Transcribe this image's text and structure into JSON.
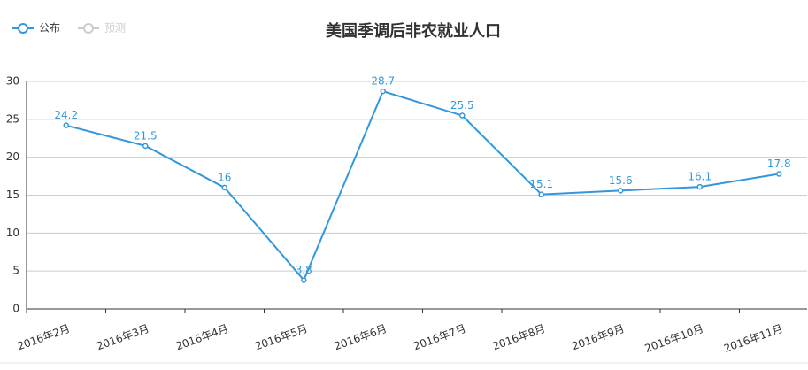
{
  "chart_data": {
    "type": "line",
    "title": "美国季调后非农就业人口",
    "categories": [
      "2016年2月",
      "2016年3月",
      "2016年4月",
      "2016年5月",
      "2016年6月",
      "2016年7月",
      "2016年8月",
      "2016年9月",
      "2016年10月",
      "2016年11月"
    ],
    "series": [
      {
        "name": "公布",
        "color": "#3398db",
        "values": [
          24.2,
          21.5,
          16,
          3.8,
          28.7,
          25.5,
          15.1,
          15.6,
          16.1,
          17.8
        ]
      },
      {
        "name": "预测",
        "color": "#cccccc",
        "values": [
          null,
          null,
          null,
          null,
          null,
          null,
          null,
          null,
          null,
          null
        ]
      }
    ],
    "ylim": [
      0,
      30
    ],
    "yticks": [
      0,
      5,
      10,
      15,
      20,
      25,
      30
    ],
    "grid": true
  }
}
